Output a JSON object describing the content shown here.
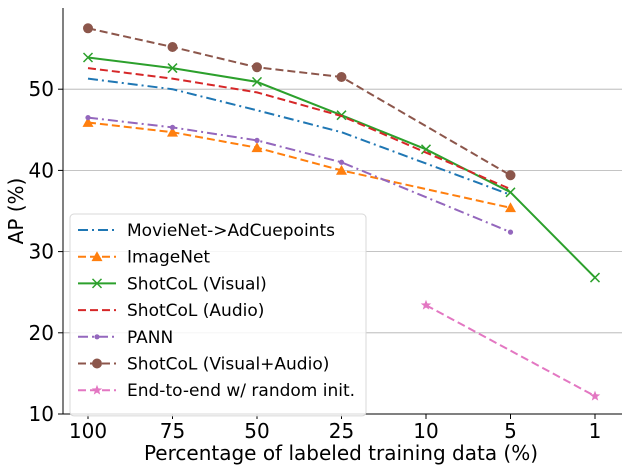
{
  "chart_data": {
    "type": "line",
    "title": "",
    "xlabel": "Percentage of labeled training data (%)",
    "ylabel": "AP (%)",
    "categories": [
      "100",
      "75",
      "50",
      "25",
      "10",
      "5",
      "1"
    ],
    "ylim": [
      10,
      60
    ],
    "yticks": [
      10,
      20,
      30,
      40,
      50
    ],
    "grid": "horizontal",
    "legend_position": "lower-left",
    "series": [
      {
        "name": "MovieNet->AdCuepoints",
        "color": "#1f77b4",
        "dash": "dashdot",
        "marker": "none",
        "values": [
          51.3,
          50.0,
          47.4,
          44.7,
          null,
          37.0,
          null
        ]
      },
      {
        "name": "ImageNet",
        "color": "#ff7f0e",
        "dash": "dashed",
        "marker": "triangle",
        "values": [
          45.9,
          44.7,
          42.8,
          40.0,
          null,
          35.4,
          null
        ]
      },
      {
        "name": "ShotCoL (Visual)",
        "color": "#2ca02c",
        "dash": "solid",
        "marker": "x",
        "values": [
          53.9,
          52.6,
          50.9,
          46.8,
          42.6,
          37.3,
          26.8
        ]
      },
      {
        "name": "ShotCoL (Audio)",
        "color": "#d62728",
        "dash": "dashed",
        "marker": "none",
        "values": [
          52.6,
          51.3,
          49.6,
          46.7,
          null,
          37.7,
          null
        ]
      },
      {
        "name": "PANN",
        "color": "#9467bd",
        "dash": "dashdot",
        "marker": "dot",
        "values": [
          46.5,
          45.3,
          43.7,
          41.0,
          null,
          32.4,
          null
        ]
      },
      {
        "name": "ShotCoL (Visual+Audio)",
        "color": "#8c564b",
        "dash": "dashed",
        "marker": "circle",
        "values": [
          57.5,
          55.2,
          52.7,
          51.5,
          null,
          39.4,
          null
        ]
      },
      {
        "name": "End-to-end w/ random init.",
        "color": "#e377c2",
        "dash": "dashed",
        "marker": "star",
        "values": [
          null,
          null,
          null,
          null,
          23.4,
          null,
          12.2
        ]
      }
    ]
  }
}
